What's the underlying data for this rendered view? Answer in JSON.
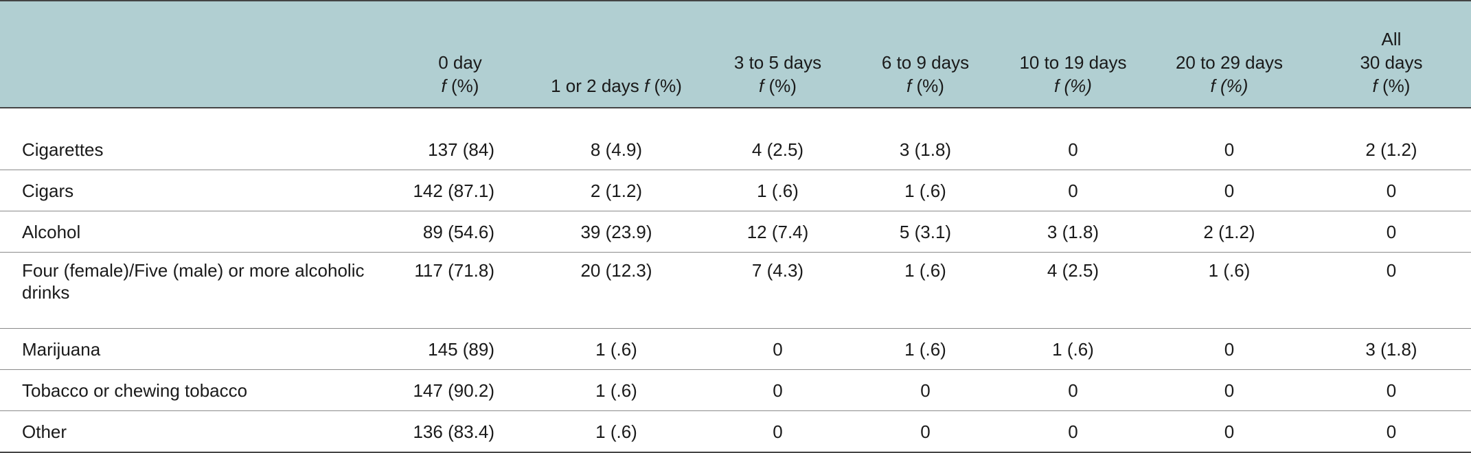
{
  "table": {
    "headers": [
      {
        "line1": "",
        "line2": "",
        "italic_f": ""
      },
      {
        "line1": "0 day",
        "line2": "(%)",
        "italic_f": "f"
      },
      {
        "line1": "1 or 2 days",
        "line2": "(%)",
        "italic_f": "f"
      },
      {
        "line1": "3 to 5 days",
        "line2": "(%)",
        "italic_f": "f"
      },
      {
        "line1": "6 to 9 days",
        "line2": "(%)",
        "italic_f": "f"
      },
      {
        "line1": "10 to 19 days",
        "line2": "(%)",
        "italic_f": "f"
      },
      {
        "line1": "20 to 29 days",
        "line2": "(%)",
        "italic_f": "f"
      },
      {
        "line1": "All",
        "line1b": "30 days",
        "line2": "(%)",
        "italic_f": "f"
      }
    ],
    "rows": [
      {
        "label": "Cigarettes",
        "values": [
          "137 (84)",
          "8 (4.9)",
          "4 (2.5)",
          "3 (1.8)",
          "0",
          "0",
          "2 (1.2)"
        ]
      },
      {
        "label": "Cigars",
        "values": [
          "142 (87.1)",
          "2 (1.2)",
          "1 (.6)",
          "1 (.6)",
          "0",
          "0",
          "0"
        ]
      },
      {
        "label": "Alcohol",
        "values": [
          "89 (54.6)",
          "39 (23.9)",
          "12 (7.4)",
          "5 (3.1)",
          "3 (1.8)",
          "2 (1.2)",
          "0"
        ]
      },
      {
        "label": "Four (female)/Five (male) or more alcoholic drinks",
        "values": [
          "117 (71.8)",
          "20 (12.3)",
          "7 (4.3)",
          "1 (.6)",
          "4 (2.5)",
          "1 (.6)",
          "0"
        ]
      },
      {
        "label": "Marijuana",
        "values": [
          "145 (89)",
          "1 (.6)",
          "0",
          "1 (.6)",
          "1 (.6)",
          "0",
          "3 (1.8)"
        ]
      },
      {
        "label": "Tobacco or chewing tobacco",
        "values": [
          "147 (90.2)",
          "1 (.6)",
          "0",
          "0",
          "0",
          "0",
          "0"
        ]
      },
      {
        "label": "Other",
        "values": [
          "136 (83.4)",
          "1 (.6)",
          "0",
          "0",
          "0",
          "0",
          "0"
        ]
      }
    ]
  },
  "colors": {
    "header_bg": "#b1cfd2",
    "rule": "#444444",
    "row_divider": "#8a8a8a"
  }
}
